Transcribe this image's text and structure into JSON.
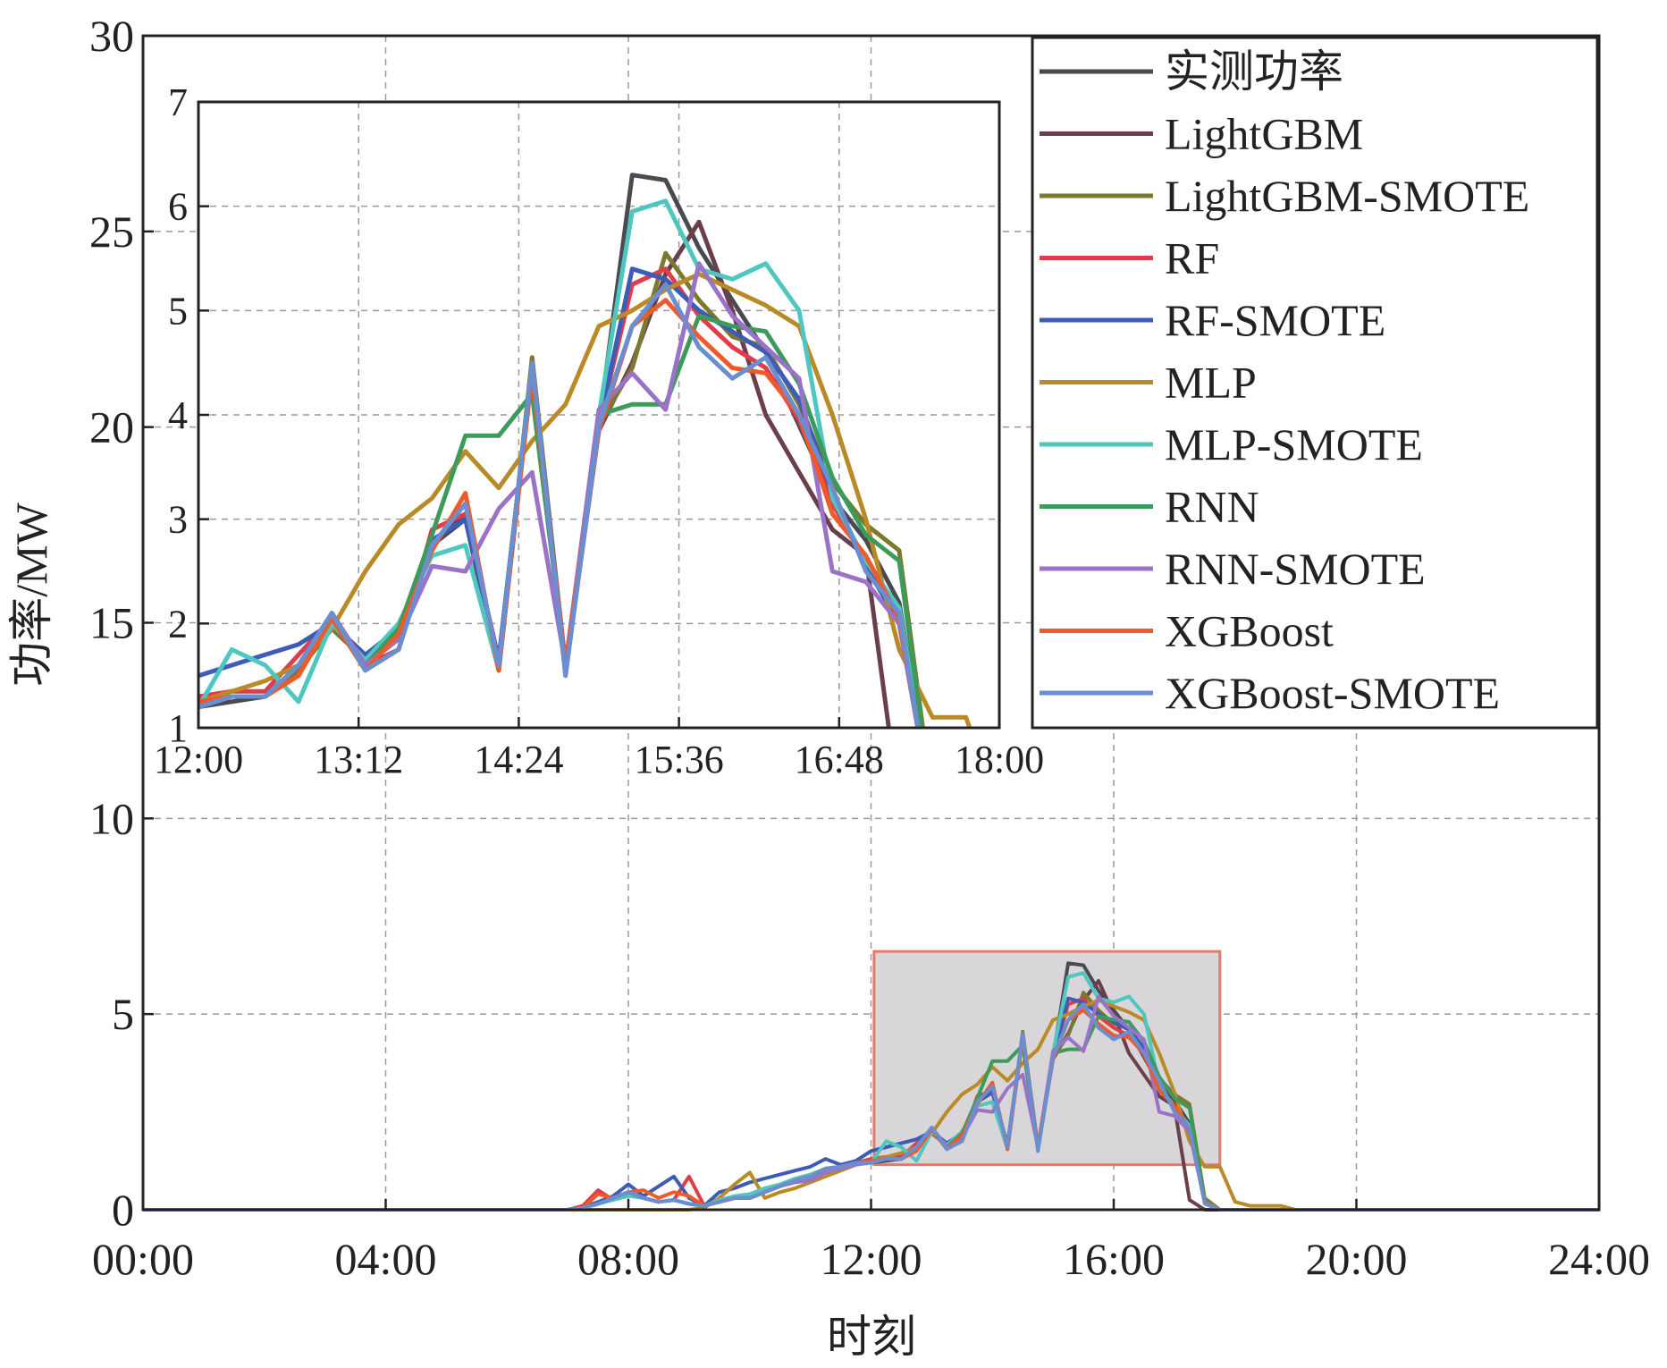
{
  "chart_data": {
    "type": "line",
    "xlabel": "时刻",
    "ylabel": "功率/MW",
    "main": {
      "xlim": [
        0,
        24
      ],
      "ylim": [
        0,
        30
      ],
      "x_ticks": [
        0,
        4,
        8,
        12,
        16,
        20,
        24
      ],
      "x_tick_labels": [
        "00:00",
        "04:00",
        "08:00",
        "12:00",
        "16:00",
        "20:00",
        "24:00"
      ],
      "y_ticks": [
        0,
        5,
        10,
        15,
        20,
        25,
        30
      ],
      "y_tick_labels": [
        "0",
        "5",
        "10",
        "15",
        "20",
        "25",
        "30"
      ],
      "grid": true,
      "highlight_box": {
        "x0": 12.05,
        "x1": 17.75,
        "y0": 1.15,
        "y1": 6.6,
        "fill": "#d8d6d8",
        "stroke": "#e8786a"
      }
    },
    "inset": {
      "xlim": [
        12,
        18
      ],
      "ylim": [
        1,
        7
      ],
      "x_ticks": [
        12,
        13.2,
        14.4,
        15.6,
        16.8,
        18
      ],
      "x_tick_labels": [
        "12:00",
        "13:12",
        "14:24",
        "15:36",
        "16:48",
        "18:00"
      ],
      "y_ticks": [
        1,
        2,
        3,
        4,
        5,
        6,
        7
      ],
      "y_tick_labels": [
        "1",
        "2",
        "3",
        "4",
        "5",
        "6",
        "7"
      ],
      "grid": true
    },
    "legend_position": "top-right",
    "x": [
      0,
      0.25,
      0.5,
      0.75,
      1,
      1.25,
      1.5,
      1.75,
      2,
      2.25,
      2.5,
      2.75,
      3,
      3.25,
      3.5,
      3.75,
      4,
      4.25,
      4.5,
      4.75,
      5,
      5.25,
      5.5,
      5.75,
      6,
      6.25,
      6.5,
      6.75,
      7,
      7.25,
      7.5,
      7.75,
      8,
      8.25,
      8.5,
      8.75,
      9,
      9.25,
      9.5,
      9.75,
      10,
      10.25,
      10.5,
      10.75,
      11,
      11.25,
      11.5,
      11.75,
      12,
      12.25,
      12.5,
      12.75,
      13,
      13.25,
      13.5,
      13.75,
      14,
      14.25,
      14.5,
      14.75,
      15,
      15.25,
      15.5,
      15.75,
      16,
      16.25,
      16.5,
      16.75,
      17,
      17.25,
      17.5,
      17.75,
      18,
      18.25,
      18.5,
      18.75,
      19,
      19.25,
      19.5,
      19.75,
      20,
      20.25,
      20.5,
      20.75,
      21,
      21.25,
      21.5,
      21.75,
      22,
      22.25,
      22.5,
      22.75,
      23,
      23.25,
      23.5,
      23.75,
      24
    ],
    "series": [
      {
        "name": "实测功率",
        "color": "#4a4a52",
        "values": [
          0,
          0,
          0,
          0,
          0,
          0,
          0,
          0,
          0,
          0,
          0,
          0,
          0,
          0,
          0,
          0,
          0,
          0,
          0,
          0,
          0,
          0,
          0,
          0,
          0,
          0,
          0,
          0,
          0,
          0.05,
          0.15,
          0.3,
          0.45,
          0.3,
          0.2,
          0.25,
          0.15,
          0.1,
          0.2,
          0.3,
          0.3,
          0.45,
          0.6,
          0.75,
          0.85,
          1.05,
          1.1,
          1.2,
          1.2,
          1.25,
          1.3,
          1.55,
          2.1,
          1.6,
          1.95,
          2.75,
          3.0,
          1.55,
          4.45,
          1.55,
          3.9,
          6.3,
          6.25,
          5.6,
          5.1,
          4.6,
          3.9,
          3.2,
          2.8,
          2.2,
          0.2,
          0,
          0,
          0,
          0,
          0,
          0,
          0,
          0,
          0,
          0,
          0,
          0,
          0,
          0,
          0,
          0,
          0,
          0,
          0,
          0,
          0,
          0,
          0,
          0,
          0,
          0
        ]
      },
      {
        "name": "LightGBM",
        "color": "#6b3e4b",
        "values": [
          0,
          0,
          0,
          0,
          0,
          0,
          0,
          0,
          0,
          0,
          0,
          0,
          0,
          0,
          0,
          0,
          0,
          0,
          0,
          0,
          0,
          0,
          0,
          0,
          0,
          0,
          0,
          0,
          0,
          0.05,
          0.15,
          0.3,
          0.45,
          0.3,
          0.2,
          0.25,
          0.15,
          0.1,
          0.2,
          0.3,
          0.3,
          0.45,
          0.6,
          0.75,
          0.85,
          1.05,
          1.1,
          1.2,
          1.25,
          1.3,
          1.3,
          1.55,
          2.05,
          1.65,
          1.95,
          2.75,
          3.05,
          1.65,
          4.45,
          1.55,
          3.85,
          4.5,
          5.35,
          5.85,
          5.0,
          4.0,
          3.45,
          2.9,
          2.65,
          0.25,
          0,
          0,
          0,
          0,
          0,
          0,
          0,
          0,
          0,
          0,
          0,
          0,
          0,
          0,
          0,
          0,
          0,
          0,
          0,
          0,
          0,
          0,
          0,
          0,
          0,
          0,
          0
        ]
      },
      {
        "name": "LightGBM-SMOTE",
        "color": "#7a7a2e",
        "values": [
          0,
          0,
          0,
          0,
          0,
          0,
          0,
          0,
          0,
          0,
          0,
          0,
          0,
          0,
          0,
          0,
          0,
          0,
          0,
          0,
          0,
          0,
          0,
          0,
          0,
          0,
          0,
          0,
          0,
          0.05,
          0.15,
          0.3,
          0.45,
          0.3,
          0.2,
          0.25,
          0.15,
          0.1,
          0.2,
          0.3,
          0.3,
          0.45,
          0.6,
          0.75,
          0.85,
          1.05,
          1.1,
          1.2,
          1.2,
          1.3,
          1.3,
          1.55,
          1.95,
          1.65,
          1.9,
          2.75,
          3.15,
          1.55,
          4.55,
          1.6,
          3.9,
          4.45,
          5.55,
          5.1,
          4.75,
          4.65,
          4.1,
          3.35,
          2.95,
          2.7,
          0.3,
          0,
          0,
          0,
          0,
          0,
          0,
          0,
          0,
          0,
          0,
          0,
          0,
          0,
          0,
          0,
          0,
          0,
          0,
          0,
          0,
          0,
          0,
          0,
          0,
          0,
          0
        ]
      },
      {
        "name": "RF",
        "color": "#e23b4a",
        "values": [
          0,
          0,
          0,
          0,
          0,
          0,
          0,
          0,
          0,
          0,
          0,
          0,
          0,
          0,
          0,
          0,
          0,
          0,
          0,
          0,
          0,
          0,
          0,
          0,
          0,
          0,
          0,
          0,
          0,
          0.1,
          0.5,
          0.25,
          0.45,
          0.3,
          0.2,
          0.25,
          0.85,
          0.1,
          0.2,
          0.3,
          0.3,
          0.45,
          0.6,
          0.75,
          0.85,
          1.05,
          1.1,
          1.2,
          1.3,
          1.35,
          1.35,
          1.7,
          2.05,
          1.6,
          1.75,
          2.9,
          3.05,
          1.65,
          4.45,
          1.6,
          3.9,
          5.25,
          5.4,
          4.95,
          4.65,
          4.45,
          3.95,
          3.15,
          2.6,
          2.1,
          0.2,
          0,
          0,
          0,
          0,
          0,
          0,
          0,
          0,
          0,
          0,
          0,
          0,
          0,
          0,
          0,
          0,
          0,
          0,
          0,
          0,
          0,
          0,
          0,
          0,
          0,
          0
        ]
      },
      {
        "name": "RF-SMOTE",
        "color": "#3d5cb8",
        "values": [
          0,
          0,
          0,
          0,
          0,
          0,
          0,
          0,
          0,
          0,
          0,
          0,
          0,
          0,
          0,
          0,
          0,
          0,
          0,
          0,
          0,
          0,
          0,
          0,
          0,
          0,
          0,
          0,
          0,
          0.05,
          0.2,
          0.35,
          0.65,
          0.35,
          0.6,
          0.85,
          0.3,
          0.1,
          0.45,
          0.55,
          0.7,
          0.8,
          0.9,
          1.0,
          1.1,
          1.3,
          1.15,
          1.25,
          1.5,
          1.6,
          1.7,
          1.8,
          2.0,
          1.7,
          1.95,
          2.8,
          3.0,
          1.65,
          4.45,
          1.6,
          3.9,
          5.4,
          5.3,
          5.0,
          4.8,
          4.6,
          4.15,
          3.25,
          2.55,
          2.0,
          0.2,
          0,
          0,
          0,
          0,
          0,
          0,
          0,
          0,
          0,
          0,
          0,
          0,
          0,
          0,
          0,
          0,
          0,
          0,
          0,
          0,
          0,
          0,
          0,
          0,
          0,
          0
        ]
      },
      {
        "name": "MLP",
        "color": "#b98a26",
        "values": [
          0,
          0,
          0,
          0,
          0,
          0,
          0,
          0,
          0,
          0,
          0,
          0,
          0,
          0,
          0,
          0,
          0,
          0,
          0,
          0,
          0,
          0,
          0,
          0,
          0,
          0,
          0,
          0,
          0,
          0,
          0,
          0,
          0,
          0,
          0,
          0,
          0,
          0.05,
          0.3,
          0.65,
          0.95,
          0.3,
          0.45,
          0.55,
          0.7,
          0.85,
          1.0,
          1.15,
          1.25,
          1.35,
          1.45,
          1.6,
          1.95,
          2.5,
          2.95,
          3.2,
          3.65,
          3.3,
          3.75,
          4.1,
          4.85,
          5.0,
          5.2,
          5.35,
          5.2,
          5.05,
          4.85,
          4.0,
          3.0,
          1.75,
          1.1,
          1.1,
          0.2,
          0.1,
          0.1,
          0.1,
          0,
          0,
          0,
          0,
          0,
          0,
          0,
          0,
          0,
          0,
          0,
          0,
          0,
          0,
          0,
          0,
          0,
          0,
          0,
          0,
          0
        ]
      },
      {
        "name": "MLP-SMOTE",
        "color": "#4dc7c0",
        "values": [
          0,
          0,
          0,
          0,
          0,
          0,
          0,
          0,
          0,
          0,
          0,
          0,
          0,
          0,
          0,
          0,
          0,
          0,
          0,
          0,
          0,
          0,
          0,
          0,
          0,
          0,
          0,
          0,
          0,
          0.05,
          0.15,
          0.25,
          0.35,
          0.3,
          0.2,
          0.25,
          0.15,
          0.1,
          0.25,
          0.35,
          0.4,
          0.55,
          0.65,
          0.8,
          0.9,
          1.05,
          1.1,
          1.2,
          1.2,
          1.75,
          1.6,
          1.25,
          2.0,
          1.65,
          2.0,
          2.65,
          2.75,
          1.55,
          4.45,
          1.5,
          4.0,
          5.95,
          6.05,
          5.4,
          5.3,
          5.45,
          5.0,
          3.2,
          2.6,
          2.15,
          0.25,
          0,
          0,
          0,
          0,
          0,
          0,
          0,
          0,
          0,
          0,
          0,
          0,
          0,
          0,
          0,
          0,
          0,
          0,
          0,
          0,
          0,
          0,
          0,
          0,
          0,
          0
        ]
      },
      {
        "name": "RNN",
        "color": "#3c9a5a",
        "values": [
          0,
          0,
          0,
          0,
          0,
          0,
          0,
          0,
          0,
          0,
          0,
          0,
          0,
          0,
          0,
          0,
          0,
          0,
          0,
          0,
          0,
          0,
          0,
          0,
          0,
          0,
          0,
          0,
          0,
          0.05,
          0.15,
          0.3,
          0.45,
          0.3,
          0.2,
          0.25,
          0.15,
          0.1,
          0.2,
          0.3,
          0.3,
          0.45,
          0.6,
          0.75,
          0.85,
          1.05,
          1.1,
          1.2,
          1.2,
          1.3,
          1.3,
          1.6,
          2.1,
          1.6,
          1.95,
          2.85,
          3.8,
          3.8,
          4.2,
          1.6,
          4.0,
          4.1,
          4.1,
          4.95,
          4.85,
          4.8,
          4.3,
          3.4,
          2.85,
          2.6,
          0.25,
          0,
          0,
          0,
          0,
          0,
          0,
          0,
          0,
          0,
          0,
          0,
          0,
          0,
          0,
          0,
          0,
          0,
          0,
          0,
          0,
          0,
          0,
          0,
          0,
          0,
          0
        ]
      },
      {
        "name": "RNN-SMOTE",
        "color": "#9a72c8",
        "values": [
          0,
          0,
          0,
          0,
          0,
          0,
          0,
          0,
          0,
          0,
          0,
          0,
          0,
          0,
          0,
          0,
          0,
          0,
          0,
          0,
          0,
          0,
          0,
          0,
          0,
          0,
          0,
          0,
          0,
          0.05,
          0.15,
          0.3,
          0.45,
          0.3,
          0.2,
          0.25,
          0.15,
          0.1,
          0.2,
          0.3,
          0.3,
          0.45,
          0.6,
          0.7,
          0.75,
          0.95,
          1.05,
          1.15,
          1.2,
          1.3,
          1.3,
          1.6,
          2.1,
          1.6,
          1.85,
          2.55,
          2.5,
          3.1,
          3.45,
          1.6,
          4.05,
          4.4,
          4.05,
          5.45,
          4.95,
          4.65,
          4.35,
          2.5,
          2.4,
          2.0,
          0.2,
          0,
          0,
          0,
          0,
          0,
          0,
          0,
          0,
          0,
          0,
          0,
          0,
          0,
          0,
          0,
          0,
          0,
          0,
          0,
          0,
          0,
          0,
          0,
          0,
          0,
          0
        ]
      },
      {
        "name": "XGBoost",
        "color": "#ef5a2a",
        "values": [
          0,
          0,
          0,
          0,
          0,
          0,
          0,
          0,
          0,
          0,
          0,
          0,
          0,
          0,
          0,
          0,
          0,
          0,
          0,
          0,
          0,
          0,
          0,
          0,
          0,
          0,
          0,
          0,
          0,
          0.05,
          0.4,
          0.3,
          0.45,
          0.5,
          0.3,
          0.45,
          0.35,
          0.1,
          0.2,
          0.3,
          0.3,
          0.45,
          0.6,
          0.75,
          0.85,
          1.05,
          1.1,
          1.2,
          1.25,
          1.3,
          1.3,
          1.5,
          2.05,
          1.55,
          1.9,
          2.7,
          3.25,
          1.55,
          4.4,
          1.6,
          3.85,
          4.85,
          5.1,
          4.75,
          4.45,
          4.4,
          4.0,
          3.05,
          2.65,
          2.05,
          0.2,
          0,
          0,
          0,
          0,
          0,
          0,
          0,
          0,
          0,
          0,
          0,
          0,
          0,
          0,
          0,
          0,
          0,
          0,
          0,
          0,
          0,
          0,
          0,
          0,
          0,
          0
        ]
      },
      {
        "name": "XGBoost-SMOTE",
        "color": "#6a8ed0",
        "values": [
          0,
          0,
          0,
          0,
          0,
          0,
          0,
          0,
          0,
          0,
          0,
          0,
          0,
          0,
          0,
          0,
          0,
          0,
          0,
          0,
          0,
          0,
          0,
          0,
          0,
          0,
          0,
          0,
          0,
          0.05,
          0.15,
          0.3,
          0.45,
          0.3,
          0.2,
          0.25,
          0.15,
          0.1,
          0.2,
          0.3,
          0.3,
          0.45,
          0.6,
          0.75,
          0.85,
          1.05,
          1.1,
          1.2,
          1.2,
          1.3,
          1.3,
          1.6,
          2.1,
          1.55,
          1.75,
          2.75,
          3.15,
          1.6,
          4.5,
          1.5,
          3.9,
          4.85,
          5.25,
          4.65,
          4.35,
          4.55,
          4.0,
          3.3,
          2.5,
          2.1,
          0.15,
          0,
          0,
          0,
          0,
          0,
          0,
          0,
          0,
          0,
          0,
          0,
          0,
          0,
          0,
          0,
          0,
          0,
          0,
          0,
          0,
          0,
          0,
          0,
          0,
          0,
          0
        ]
      }
    ]
  }
}
